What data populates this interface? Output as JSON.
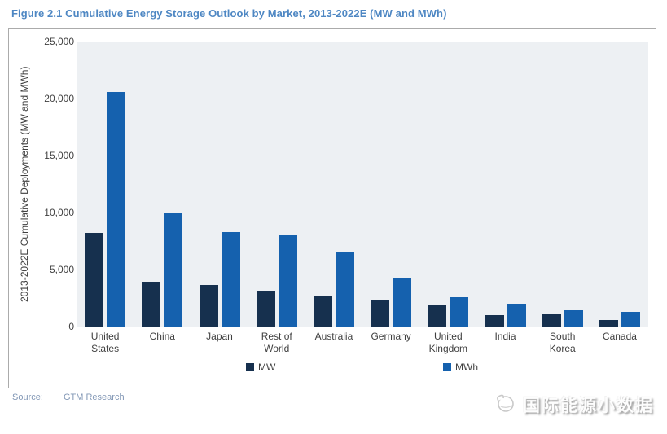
{
  "figure": {
    "title": "Figure 2.1  Cumulative Energy Storage Outlook by Market, 2013-2022E (MW and MWh)"
  },
  "chart_data": {
    "type": "bar",
    "title": "Cumulative Energy Storage Outlook by Market, 2013-2022E",
    "ylabel": "2013-2022E Cumulative Deployments (MW and MWh)",
    "xlabel": "",
    "ylim": [
      0,
      25000
    ],
    "ytick_interval": 5000,
    "yticks": [
      {
        "value": 25000,
        "label": "25,000"
      },
      {
        "value": 20000,
        "label": "20,000"
      },
      {
        "value": 15000,
        "label": "15,000"
      },
      {
        "value": 10000,
        "label": "10,000"
      },
      {
        "value": 5000,
        "label": "5,000"
      },
      {
        "value": 0,
        "label": "0"
      }
    ],
    "categories": [
      "United States",
      "China",
      "Japan",
      "Rest of World",
      "Australia",
      "Germany",
      "United Kingdom",
      "India",
      "South Korea",
      "Canada"
    ],
    "series": [
      {
        "name": "MW",
        "color": "#16304e",
        "values": [
          8200,
          3900,
          3650,
          3150,
          2750,
          2300,
          1950,
          1000,
          1100,
          550
        ]
      },
      {
        "name": "MWh",
        "color": "#1561ae",
        "values": [
          20600,
          10000,
          8300,
          8100,
          6500,
          4200,
          2550,
          2000,
          1450,
          1300
        ]
      }
    ],
    "legend_position": "bottom",
    "grid": false,
    "plot_background": "#edf0f3"
  },
  "source": {
    "label": "Source:",
    "value": "GTM Research"
  },
  "watermark": {
    "text": "国际能源小数据",
    "icon": "sketch-globe-icon"
  },
  "colors": {
    "title_text": "#4e87c3",
    "axis_text": "#404040",
    "chart_border": "#ababab",
    "source_text": "#8398b6"
  }
}
